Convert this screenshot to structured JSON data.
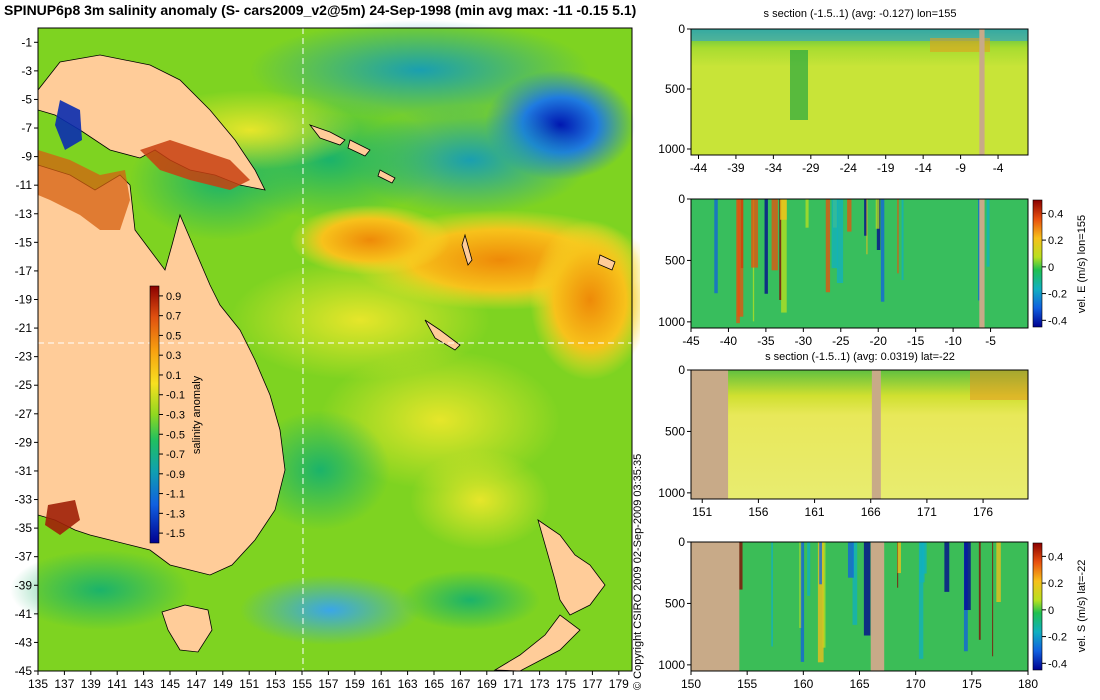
{
  "title": "SPINUP6p8 3m salinity anomaly (S- cars2009_v2@5m) 24-Sep-1998 (min avg max: -11 -0.15 5.1)",
  "copyright": "© Copyright CSIRO 2009   02-Sep-2009 03:35:35",
  "colors": {
    "ocean_mid": "#7ed321",
    "land": "#ffcc99",
    "section_land": "#c8aa88",
    "guide_line": "#ffffff"
  },
  "chart_data": [
    {
      "type": "heatmap",
      "title": "SPINUP6p8 3m salinity anomaly (S- cars2009_v2@5m) 24-Sep-1998 (min avg max: -11 -0.15 5.1)",
      "x_ticks": [
        "135",
        "137",
        "139",
        "141",
        "143",
        "145",
        "147",
        "149",
        "151",
        "153",
        "155",
        "157",
        "159",
        "161",
        "163",
        "165",
        "167",
        "169",
        "171",
        "173",
        "175",
        "177",
        "179"
      ],
      "y_ticks": [
        "-1",
        "-3",
        "-5",
        "-7",
        "-9",
        "-11",
        "-13",
        "-15",
        "-17",
        "-19",
        "-21",
        "-23",
        "-25",
        "-27",
        "-29",
        "-31",
        "-33",
        "-35",
        "-37",
        "-39",
        "-41",
        "-43",
        "-45"
      ],
      "xlim": [
        135,
        180
      ],
      "ylim": [
        -45,
        0
      ],
      "guide_lon": 155,
      "guide_lat": -22,
      "colorbar": {
        "label": "salinity anomaly",
        "ticks": [
          "0.9",
          "0.7",
          "0.5",
          "0.3",
          "0.1",
          "-0.1",
          "-0.3",
          "-0.5",
          "-0.7",
          "-0.9",
          "-1.1",
          "-1.3",
          "-1.5"
        ],
        "range": [
          -1.6,
          1.0
        ]
      }
    },
    {
      "type": "heatmap",
      "title": "s section (-1.5..1) (avg: -0.127) lon=155",
      "x_ticks": [
        "-44",
        "-39",
        "-34",
        "-29",
        "-24",
        "-19",
        "-14",
        "-9",
        "-4"
      ],
      "xlim": [
        -45,
        0
      ],
      "y_ticks": [
        "0",
        "500",
        "1000"
      ],
      "ylim": [
        0,
        1050
      ],
      "land_bands": [
        [
          -6.5,
          -5.8
        ]
      ]
    },
    {
      "type": "heatmap",
      "title": "",
      "x_ticks": [
        "-45",
        "-40",
        "-35",
        "-30",
        "-25",
        "-20",
        "-15",
        "-10",
        "-5"
      ],
      "xlim": [
        -45,
        0
      ],
      "y_ticks": [
        "0",
        "500",
        "1000"
      ],
      "ylim": [
        0,
        1050
      ],
      "land_bands": [
        [
          -6.5,
          -5.8
        ]
      ],
      "colorbar": {
        "label": "vel. E (m/s) lon=155",
        "ticks": [
          "0.4",
          "0.2",
          "0",
          "-0.2",
          "-0.4"
        ],
        "range": [
          -0.45,
          0.5
        ]
      }
    },
    {
      "type": "heatmap",
      "title": "s section (-1.5..1) (avg: 0.0319) lat=-22",
      "x_ticks": [
        "151",
        "156",
        "161",
        "166",
        "171",
        "176"
      ],
      "xlim": [
        150,
        180
      ],
      "y_ticks": [
        "0",
        "500",
        "1000"
      ],
      "ylim": [
        0,
        1050
      ],
      "land_bands": [
        [
          150,
          153.3
        ],
        [
          166.1,
          166.9
        ]
      ]
    },
    {
      "type": "heatmap",
      "title": "",
      "x_ticks": [
        "150",
        "155",
        "160",
        "165",
        "170",
        "175",
        "180"
      ],
      "xlim": [
        150,
        180
      ],
      "y_ticks": [
        "0",
        "500",
        "1000"
      ],
      "ylim": [
        0,
        1050
      ],
      "land_bands": [
        [
          150,
          154.3
        ],
        [
          166,
          167.2
        ]
      ],
      "colorbar": {
        "label": "vel. S (m/s) lat=-22",
        "ticks": [
          "0.4",
          "0.2",
          "0",
          "-0.2",
          "-0.4"
        ],
        "range": [
          -0.45,
          0.5
        ]
      }
    }
  ]
}
